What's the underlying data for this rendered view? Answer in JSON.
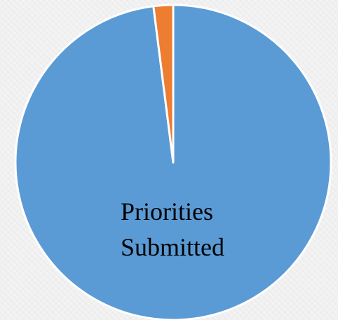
{
  "chart_data": {
    "type": "pie",
    "title": "",
    "slices": [
      {
        "label": "Priorities Submitted",
        "label_lines": [
          "Priorities",
          "Submitted"
        ],
        "value": 98,
        "color": "#5b9bd5"
      },
      {
        "label": "",
        "value": 2,
        "color": "#ed7d31"
      }
    ],
    "start_angle_deg": 0,
    "direction": "clockwise",
    "legend": "none"
  }
}
